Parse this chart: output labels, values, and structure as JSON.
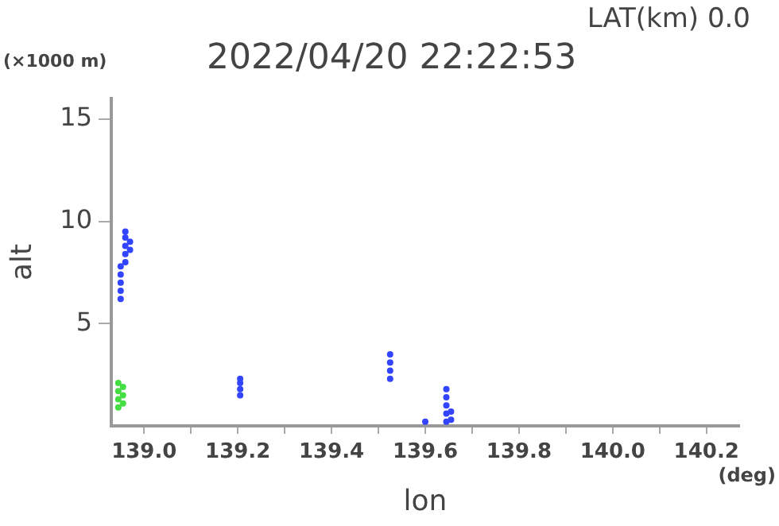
{
  "chart_data": {
    "type": "scatter",
    "title": "2022/04/20 22:22:53",
    "xlabel": "lon",
    "ylabel": "alt",
    "annotations": [
      "LAT(km) 0.0",
      "(×1000 m)",
      "(deg)"
    ],
    "xlim": [
      138.93,
      140.27
    ],
    "xticks": [
      {
        "value": 139,
        "label": "139.0"
      },
      {
        "value": 139.1,
        "label": null
      },
      139.2,
      {
        "value": 139.3,
        "label": null
      },
      139.4,
      {
        "value": 139.5,
        "label": null
      },
      139.6,
      {
        "value": 139.7,
        "label": null
      },
      139.8,
      {
        "value": 139.9,
        "label": null
      },
      {
        "value": 140,
        "label": "140.0"
      },
      {
        "value": 140.1,
        "label": null
      },
      140.2
    ],
    "ylim": [
      0,
      16
    ],
    "yticks": [
      5,
      10,
      15
    ],
    "grid": false,
    "legend": false,
    "marker": "circle",
    "series": [
      {
        "color": "#44dd44",
        "x": [
          138.945,
          138.945,
          138.945,
          138.945,
          138.955,
          138.955,
          138.955
        ],
        "values": [
          0.9,
          1.3,
          1.7,
          2.1,
          1.1,
          1.5,
          1.9
        ]
      },
      {
        "color": "#3344ff",
        "x": [
          138.95,
          138.95,
          138.95,
          138.95,
          138.95,
          138.96,
          138.96,
          138.96,
          138.96,
          138.96,
          138.97,
          138.97,
          139.205,
          139.205,
          139.205,
          139.205,
          139.525,
          139.525,
          139.525,
          139.525,
          139.645,
          139.645,
          139.645,
          139.645,
          139.645,
          139.655,
          139.655,
          139.6
        ],
        "values": [
          6.2,
          6.6,
          7.0,
          7.4,
          7.8,
          8.0,
          8.4,
          8.8,
          9.2,
          9.5,
          8.6,
          9.0,
          1.5,
          1.8,
          2.1,
          2.3,
          2.3,
          2.7,
          3.1,
          3.5,
          0.2,
          0.6,
          1.0,
          1.4,
          1.8,
          0.3,
          0.7,
          0.2
        ]
      }
    ]
  }
}
